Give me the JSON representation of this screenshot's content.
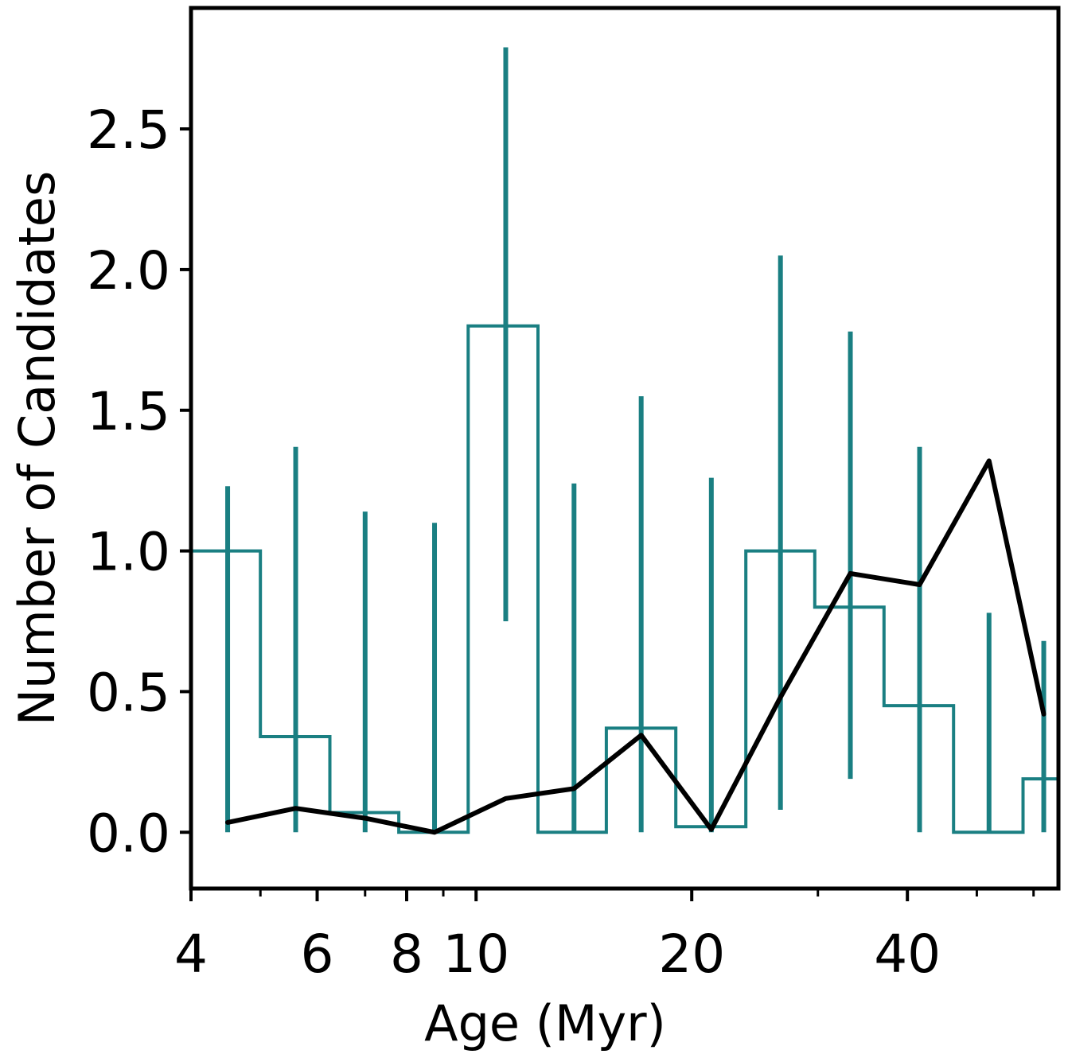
{
  "chart_data": {
    "type": "line",
    "xscale": "log",
    "xlabel": "Age (Myr)",
    "ylabel": "Number of Candidates",
    "xlim": [
      4,
      65
    ],
    "ylim": [
      -0.2,
      2.93
    ],
    "xticks_major": [
      4,
      6,
      8,
      10,
      20,
      40
    ],
    "xtick_labels": [
      "4",
      "6",
      "8",
      "10",
      "20",
      "40"
    ],
    "xticks_minor": [
      5,
      7,
      9,
      30,
      50,
      60
    ],
    "yticks": [
      0.0,
      0.5,
      1.0,
      1.5,
      2.0,
      2.5
    ],
    "ytick_labels": [
      "0.0",
      "0.5",
      "1.0",
      "1.5",
      "2.0",
      "2.5"
    ],
    "grid": false,
    "colors": {
      "histogram": "#1a7f82",
      "line": "#000000"
    },
    "histogram": {
      "edges": [
        4.0,
        5.0,
        6.25,
        7.8,
        9.75,
        12.2,
        15.2,
        19.0,
        23.8,
        29.7,
        37.1,
        46.4,
        58.0,
        65.0
      ],
      "values": [
        1.0,
        0.34,
        0.07,
        0.0,
        1.8,
        0.0,
        0.37,
        0.02,
        1.0,
        0.8,
        0.45,
        0.0,
        0.19
      ],
      "error_x": [
        4.5,
        5.6,
        7.0,
        8.75,
        11.0,
        13.7,
        17.0,
        21.3,
        26.6,
        33.3,
        41.6,
        52.0,
        62.0
      ],
      "error_low": [
        0.0,
        0.0,
        0.0,
        0.0,
        0.75,
        0.0,
        0.0,
        0.0,
        0.08,
        0.19,
        0.0,
        0.0,
        0.0
      ],
      "error_high": [
        1.23,
        1.37,
        1.14,
        1.1,
        2.79,
        1.24,
        1.55,
        1.26,
        2.05,
        1.78,
        1.37,
        0.78,
        0.68
      ]
    },
    "series": [
      {
        "x": [
          4.5,
          5.6,
          7.0,
          8.75,
          11.0,
          13.7,
          17.0,
          21.3,
          26.6,
          33.3,
          41.6,
          52.0,
          62.0
        ],
        "y": [
          0.035,
          0.085,
          0.05,
          0.0,
          0.12,
          0.155,
          0.345,
          0.01,
          0.48,
          0.92,
          0.88,
          1.32,
          0.42
        ]
      }
    ]
  }
}
